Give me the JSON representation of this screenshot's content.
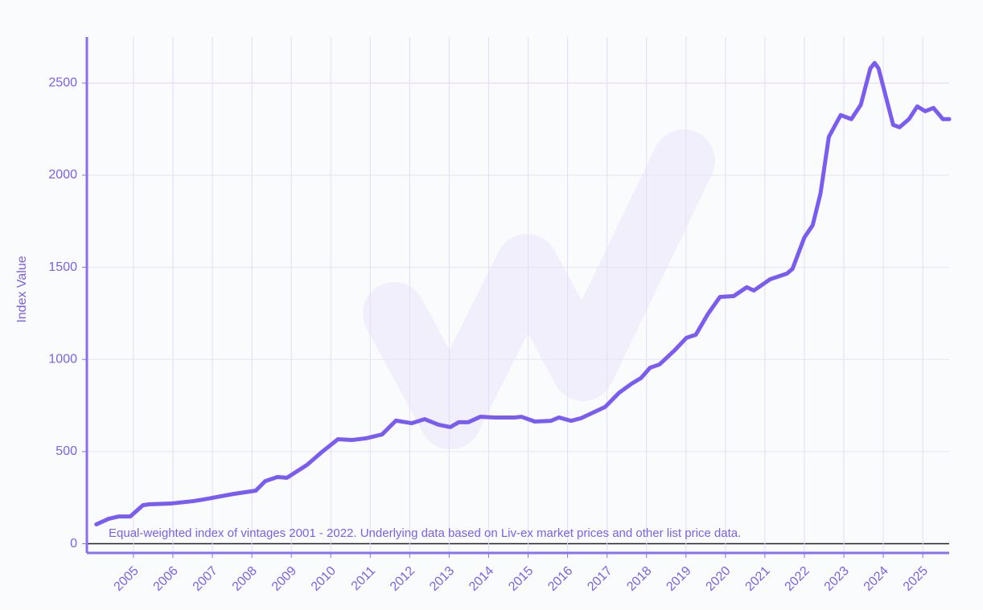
{
  "chart_data": {
    "type": "line",
    "y_label": "Index Value",
    "annotation": "Equal-weighted index of vintages 2001 - 2022. Underlying data based on Liv-ex market prices and other list price data.",
    "x": [
      2004.06,
      2004.37,
      2004.63,
      2004.92,
      2005.24,
      2005.39,
      2005.94,
      2006.51,
      2006.88,
      2007.53,
      2008.1,
      2008.34,
      2008.65,
      2008.89,
      2009.4,
      2009.77,
      2010.18,
      2010.55,
      2010.89,
      2011.3,
      2011.65,
      2012.05,
      2012.38,
      2012.73,
      2013.03,
      2013.24,
      2013.48,
      2013.79,
      2014.15,
      2014.66,
      2014.83,
      2015.17,
      2015.58,
      2015.78,
      2016.09,
      2016.34,
      2016.64,
      2016.95,
      2017.31,
      2017.62,
      2017.86,
      2018.09,
      2018.33,
      2018.7,
      2019.01,
      2019.25,
      2019.56,
      2019.86,
      2020.21,
      2020.54,
      2020.72,
      2021.13,
      2021.56,
      2021.7,
      2022.0,
      2022.21,
      2022.41,
      2022.62,
      2022.92,
      2023.19,
      2023.43,
      2023.67,
      2023.78,
      2023.88,
      2024.25,
      2024.41,
      2024.65,
      2024.86,
      2025.06,
      2025.27,
      2025.51,
      2025.67
    ],
    "series": [
      {
        "color": "#7b5cf0",
        "values": [
          105,
          135,
          148,
          148,
          209,
          214,
          218,
          231,
          244,
          270,
          288,
          340,
          362,
          358,
          428,
          497,
          567,
          563,
          572,
          593,
          668,
          654,
          676,
          646,
          633,
          659,
          659,
          689,
          685,
          685,
          689,
          663,
          667,
          685,
          667,
          681,
          711,
          742,
          820,
          868,
          899,
          955,
          973,
          1047,
          1117,
          1134,
          1248,
          1339,
          1344,
          1392,
          1374,
          1435,
          1466,
          1492,
          1662,
          1728,
          1902,
          2208,
          2326,
          2304,
          2382,
          2579,
          2609,
          2579,
          2273,
          2260,
          2304,
          2373,
          2347,
          2365,
          2304,
          2304
        ]
      }
    ],
    "xlim": [
      2003.82,
      2025.67
    ],
    "xticks": [
      2005,
      2006,
      2007,
      2008,
      2009,
      2010,
      2011,
      2012,
      2013,
      2014,
      2015,
      2016,
      2017,
      2018,
      2019,
      2020,
      2021,
      2022,
      2023,
      2024,
      2025
    ],
    "ylim": [
      -50,
      2750
    ],
    "yticks": [
      0,
      500,
      1000,
      1500,
      2000,
      2500
    ],
    "grid": true
  }
}
